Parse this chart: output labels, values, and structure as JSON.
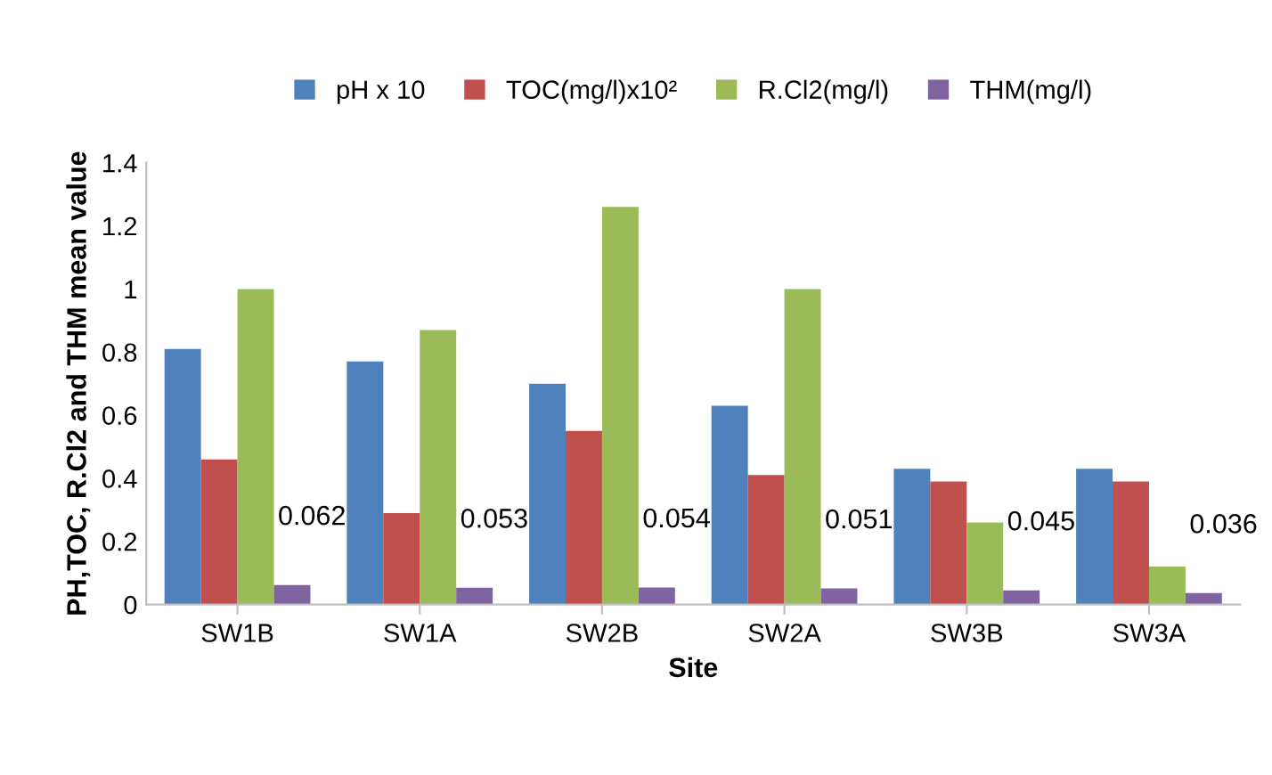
{
  "chart_data": {
    "type": "bar",
    "xlabel": "Site",
    "ylabel": "PH,TOC, R.Cl2 and THM mean value",
    "categories": [
      "SW1B",
      "SW1A",
      "SW2B",
      "SW2A",
      "SW3B",
      "SW3A"
    ],
    "series": [
      {
        "name": "pH x 10",
        "color": "#4f81bd",
        "values": [
          0.81,
          0.77,
          0.7,
          0.63,
          0.43,
          0.43
        ]
      },
      {
        "name": "TOC(mg/l)x10²",
        "color": "#c0504d",
        "values": [
          0.46,
          0.29,
          0.55,
          0.41,
          0.39,
          0.39
        ]
      },
      {
        "name": "R.Cl2(mg/l)",
        "color": "#9bbb59",
        "values": [
          1.0,
          0.87,
          1.26,
          1.0,
          0.26,
          0.12
        ]
      },
      {
        "name": "THM(mg/l)",
        "color": "#8064a2",
        "values": [
          0.062,
          0.053,
          0.054,
          0.051,
          0.045,
          0.036
        ],
        "value_labels": [
          "0.062",
          "0.053",
          "0.054",
          "0.051",
          "0.045",
          "0.036"
        ]
      }
    ],
    "ylim": [
      0,
      1.4
    ],
    "yticks": [
      0,
      0.2,
      0.4,
      0.6,
      0.8,
      1,
      1.2,
      1.4
    ],
    "grid": false,
    "legend": "top"
  }
}
